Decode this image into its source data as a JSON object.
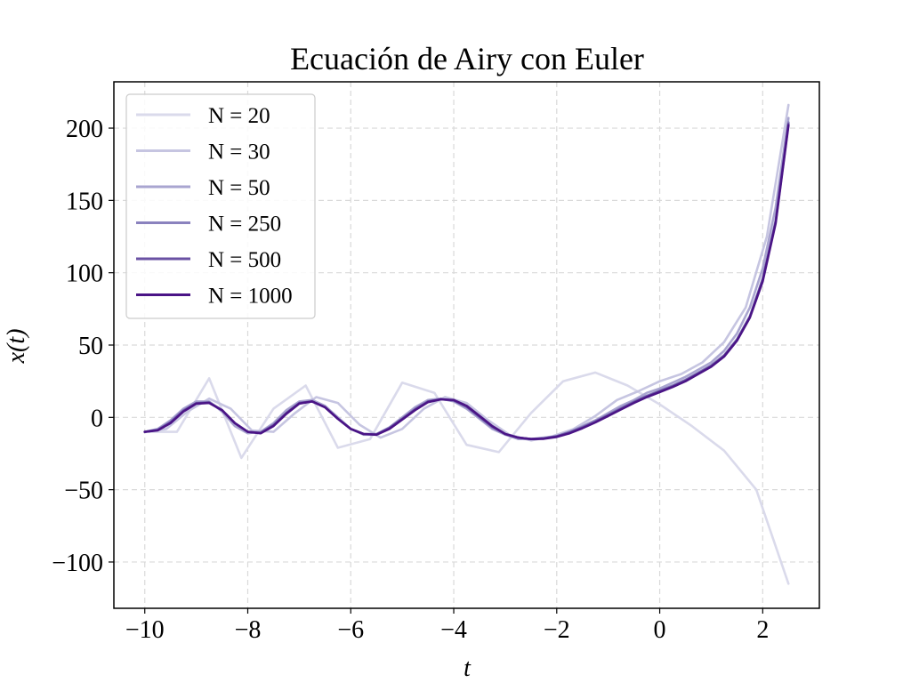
{
  "chart_data": {
    "type": "line",
    "title": "Ecuación de Airy con Euler",
    "xlabel": "t",
    "ylabel": "x(t)",
    "xlim": [
      -10.6,
      3.1
    ],
    "ylim": [
      -132,
      232
    ],
    "xticks": [
      -10,
      -8,
      -6,
      -4,
      -2,
      0,
      2
    ],
    "xtick_labels": [
      "−10",
      "−8",
      "−6",
      "−4",
      "−2",
      "0",
      "2"
    ],
    "yticks": [
      -100,
      -50,
      0,
      50,
      100,
      150,
      200
    ],
    "ytick_labels": [
      "−100",
      "−50",
      "0",
      "50",
      "100",
      "150",
      "200"
    ],
    "grid": true,
    "legend_position": "upper-left",
    "series": [
      {
        "name": "N = 20",
        "color": "#dadaeb",
        "x": [
          -10,
          -9.375,
          -8.75,
          -8.125,
          -7.5,
          -6.875,
          -6.25,
          -5.625,
          -5.0,
          -4.375,
          -3.75,
          -3.125,
          -2.5,
          -1.875,
          -1.25,
          -0.625,
          0.0,
          0.625,
          1.25,
          1.875,
          2.5
        ],
        "y": [
          -10,
          -10,
          27,
          -28,
          6,
          22,
          -21,
          -15,
          24,
          17,
          -19,
          -24,
          3,
          25,
          31,
          22,
          9,
          -6,
          -23,
          -50,
          -115
        ]
      },
      {
        "name": "N = 30",
        "color": "#c6c5e1",
        "x": [
          -10,
          -9.58,
          -9.17,
          -8.75,
          -8.33,
          -7.92,
          -7.5,
          -7.08,
          -6.67,
          -6.25,
          -5.83,
          -5.42,
          -5.0,
          -4.58,
          -4.17,
          -3.75,
          -3.33,
          -2.92,
          -2.5,
          -2.08,
          -1.67,
          -1.25,
          -0.83,
          -0.42,
          0.0,
          0.42,
          0.83,
          1.25,
          1.67,
          2.08,
          2.5
        ],
        "y": [
          -10,
          -8,
          4,
          13,
          6,
          -9,
          -10,
          3,
          14,
          10,
          -5,
          -14,
          -8,
          6,
          14,
          10,
          -2,
          -12,
          -16,
          -13,
          -8,
          1,
          12,
          18,
          25,
          30,
          38,
          52,
          76,
          125,
          216
        ]
      },
      {
        "name": "N = 50",
        "color": "#a9a5d0",
        "x": [
          -10,
          -9.75,
          -9.5,
          -9.25,
          -9.0,
          -8.75,
          -8.5,
          -8.25,
          -8.0,
          -7.75,
          -7.5,
          -7.25,
          -7.0,
          -6.75,
          -6.5,
          -6.25,
          -6.0,
          -5.75,
          -5.5,
          -5.25,
          -5.0,
          -4.75,
          -4.5,
          -4.25,
          -4.0,
          -3.75,
          -3.5,
          -3.25,
          -3.0,
          -2.75,
          -2.5,
          -2.25,
          -2.0,
          -1.75,
          -1.5,
          -1.25,
          -1.0,
          -0.75,
          -0.5,
          -0.25,
          0.0,
          0.25,
          0.5,
          0.75,
          1.0,
          1.25,
          1.5,
          1.75,
          2.0,
          2.25,
          2.5
        ],
        "y": [
          -10,
          -8,
          -2,
          6,
          11,
          11,
          4,
          -6,
          -11,
          -10,
          -4,
          5,
          11,
          12,
          8,
          0,
          -8,
          -12,
          -12,
          -7,
          0,
          7,
          12,
          13,
          11,
          6,
          -1,
          -8,
          -12,
          -15,
          -15,
          -14,
          -13,
          -10,
          -6,
          -2,
          3,
          8,
          12,
          17,
          20,
          24,
          28,
          33,
          38,
          46,
          58,
          76,
          103,
          145,
          207
        ]
      },
      {
        "name": "N = 250",
        "color": "#8a82be",
        "x": [
          -10,
          -9.75,
          -9.5,
          -9.25,
          -9.0,
          -8.75,
          -8.5,
          -8.25,
          -8.0,
          -7.75,
          -7.5,
          -7.25,
          -7.0,
          -6.75,
          -6.5,
          -6.25,
          -6.0,
          -5.75,
          -5.5,
          -5.25,
          -5.0,
          -4.75,
          -4.5,
          -4.25,
          -4.0,
          -3.75,
          -3.5,
          -3.25,
          -3.0,
          -2.75,
          -2.5,
          -2.25,
          -2.0,
          -1.75,
          -1.5,
          -1.25,
          -1.0,
          -0.75,
          -0.5,
          -0.25,
          0.0,
          0.25,
          0.5,
          0.75,
          1.0,
          1.25,
          1.5,
          1.75,
          2.0,
          2.25,
          2.5
        ],
        "y": [
          -10,
          -8.5,
          -3,
          5,
          10,
          10.5,
          5,
          -4,
          -10,
          -10.5,
          -5,
          3,
          10,
          11,
          7,
          -1,
          -8,
          -11.5,
          -11.5,
          -7,
          -1,
          6,
          11,
          12.5,
          11.5,
          7,
          0,
          -7,
          -11.5,
          -14,
          -15,
          -14.5,
          -13,
          -10,
          -6.5,
          -2.5,
          2,
          6.5,
          11,
          15,
          18.5,
          22,
          26,
          31,
          36,
          43,
          54,
          70,
          96,
          136,
          204
        ]
      },
      {
        "name": "N = 500",
        "color": "#6a51a3",
        "x": [
          -10,
          -9.75,
          -9.5,
          -9.25,
          -9.0,
          -8.75,
          -8.5,
          -8.25,
          -8.0,
          -7.75,
          -7.5,
          -7.25,
          -7.0,
          -6.75,
          -6.5,
          -6.25,
          -6.0,
          -5.75,
          -5.5,
          -5.25,
          -5.0,
          -4.75,
          -4.5,
          -4.25,
          -4.0,
          -3.75,
          -3.5,
          -3.25,
          -3.0,
          -2.75,
          -2.5,
          -2.25,
          -2.0,
          -1.75,
          -1.5,
          -1.25,
          -1.0,
          -0.75,
          -0.5,
          -0.25,
          0.0,
          0.25,
          0.5,
          0.75,
          1.0,
          1.25,
          1.5,
          1.75,
          2.0,
          2.25,
          2.5
        ],
        "y": [
          -10,
          -8.8,
          -3.5,
          4.5,
          9.8,
          10.2,
          5,
          -4,
          -10,
          -10.8,
          -5.5,
          3,
          10,
          11,
          7,
          -1,
          -8,
          -11.5,
          -11.8,
          -7.5,
          -1,
          5.5,
          11,
          12.5,
          11.8,
          7.5,
          0.5,
          -6.5,
          -11.5,
          -14,
          -15,
          -14.5,
          -13,
          -10.5,
          -7,
          -3,
          1.5,
          6,
          10.5,
          14.5,
          18,
          21.5,
          25.5,
          30.5,
          35.5,
          42.5,
          53.5,
          69.5,
          95,
          135,
          203
        ]
      },
      {
        "name": "N = 1000",
        "color": "#4a1486",
        "x": [
          -10,
          -9.75,
          -9.5,
          -9.25,
          -9.0,
          -8.75,
          -8.5,
          -8.25,
          -8.0,
          -7.75,
          -7.5,
          -7.25,
          -7.0,
          -6.75,
          -6.5,
          -6.25,
          -6.0,
          -5.75,
          -5.5,
          -5.25,
          -5.0,
          -4.75,
          -4.5,
          -4.25,
          -4.0,
          -3.75,
          -3.5,
          -3.25,
          -3.0,
          -2.75,
          -2.5,
          -2.25,
          -2.0,
          -1.75,
          -1.5,
          -1.25,
          -1.0,
          -0.75,
          -0.5,
          -0.25,
          0.0,
          0.25,
          0.5,
          0.75,
          1.0,
          1.25,
          1.5,
          1.75,
          2.0,
          2.25,
          2.5
        ],
        "y": [
          -10,
          -9,
          -4,
          4,
          9.5,
          10,
          5,
          -4,
          -10,
          -11,
          -6,
          2.5,
          9.5,
          11,
          7,
          -1,
          -8,
          -11.5,
          -12,
          -8,
          -1.5,
          5,
          10.5,
          12.5,
          12,
          8,
          1,
          -6,
          -11.5,
          -14,
          -15,
          -14.8,
          -13.5,
          -11,
          -7.5,
          -3.5,
          1,
          5.5,
          10,
          14,
          17.5,
          21,
          25,
          30,
          35,
          42,
          53,
          69,
          94,
          134,
          202
        ]
      }
    ]
  }
}
